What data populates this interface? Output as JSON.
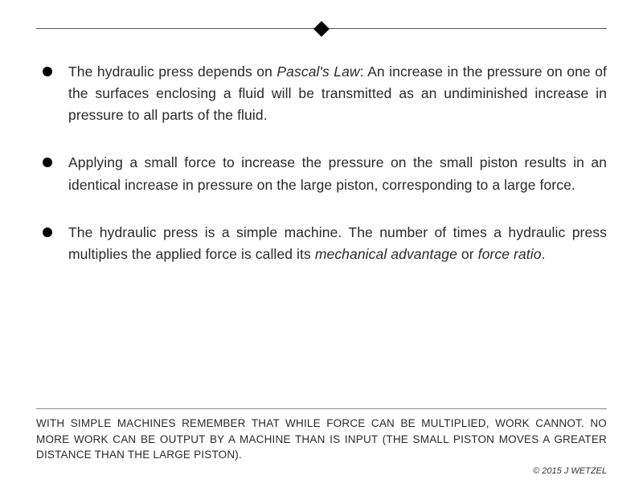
{
  "bullets": [
    {
      "pre": "The hydraulic press depends on ",
      "italic": "Pascal's Law",
      "post": ":  An increase in the pressure on one of the surfaces enclosing a fluid will be transmitted as an undiminished increase in pressure to all parts of the fluid."
    },
    {
      "pre": "Applying a small force to increase the pressure on the small piston results in an identical increase in pressure on the large piston, corresponding to a large force.",
      "italic": "",
      "post": ""
    },
    {
      "pre": "The hydraulic press is a simple machine.  The number of times a hydraulic press multiplies the applied force is called its ",
      "italic": "mechanical advantage",
      "mid": " or ",
      "italic2": "force ratio",
      "post": "."
    }
  ],
  "footer_note": "WITH SIMPLE MACHINES REMEMBER THAT WHILE FORCE CAN BE MULTIPLIED, WORK CANNOT.  NO MORE WORK CAN BE OUTPUT BY A MACHINE THAN IS INPUT (THE SMALL PISTON MOVES A GREATER DISTANCE THAN THE LARGE PISTON).",
  "copyright": "© 2015 J WETZEL",
  "colors": {
    "bg": "#ffffff",
    "text": "#2a2a2a",
    "divider_top": "#555555",
    "divider_bottom": "#888888",
    "bullet_marker": "#000000",
    "diamond": "#000000"
  },
  "typography": {
    "body_fontsize": 17.5,
    "footer_fontsize": 13.5,
    "copyright_fontsize": 11,
    "line_height": 1.55
  }
}
